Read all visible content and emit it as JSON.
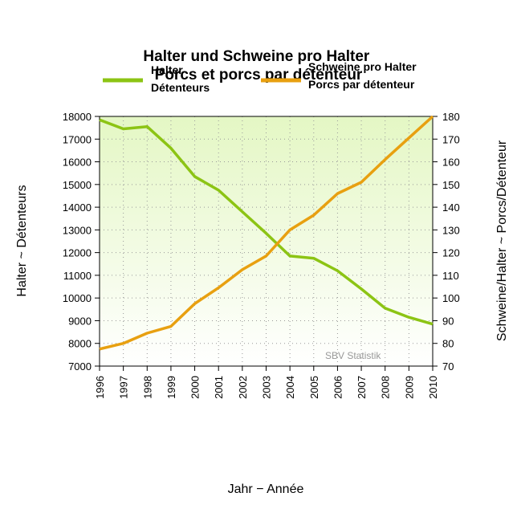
{
  "chart_data": {
    "type": "line",
    "title": "Halter und Schweine pro Halter\nPorcs et porcs par détenteur",
    "ylabel": "Halter ~ Détenteurs",
    "y2label": "Schweine/Halter ~ Porcs/Détenteur",
    "xlabel": "Jahr − Année",
    "annotation": "SBV Statistik",
    "categories": [
      "1996",
      "1997",
      "1998",
      "1999",
      "2000",
      "2001",
      "2002",
      "2003",
      "2004",
      "2005",
      "2006",
      "2007",
      "2008",
      "2009",
      "2010"
    ],
    "series": [
      {
        "name": "Halter\nDétenteurs",
        "color": "#8cc414",
        "axis": "y",
        "values": [
          17850,
          17450,
          17550,
          16600,
          15350,
          14750,
          13800,
          12850,
          11850,
          11750,
          11200,
          10400,
          9550,
          9150,
          8850
        ]
      },
      {
        "name": "Schweine pro Halter\nPorcs par détenteur",
        "color": "#e8a010",
        "axis": "y2",
        "values": [
          77.5,
          80,
          84.5,
          87.5,
          97.5,
          104.5,
          112.5,
          118.5,
          130,
          136.5,
          146,
          151,
          161,
          170.5,
          180
        ]
      }
    ],
    "ylim": [
      7000,
      18000
    ],
    "yticks": [
      7000,
      8000,
      9000,
      10000,
      11000,
      12000,
      13000,
      14000,
      15000,
      16000,
      17000,
      18000
    ],
    "y2lim": [
      70,
      180
    ],
    "y2ticks": [
      70,
      80,
      90,
      100,
      110,
      120,
      130,
      140,
      150,
      160,
      170,
      180
    ],
    "grid": true
  }
}
